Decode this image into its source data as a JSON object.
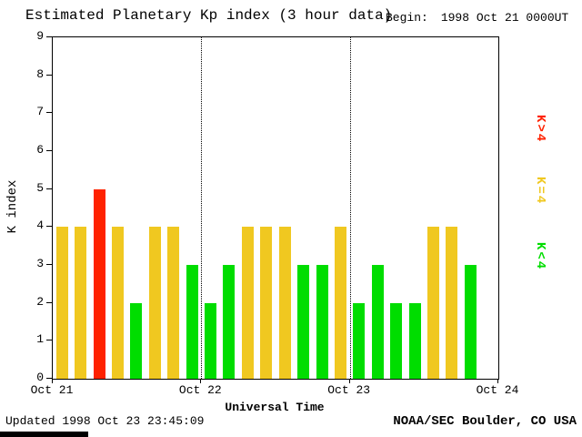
{
  "title": "Estimated Planetary Kp index (3 hour data)",
  "begin_label": "Begin:",
  "begin_value": "1998 Oct 21 0000UT",
  "footer": {
    "updated": "Updated 1998 Oct 23 23:45:09",
    "source": "NOAA/SEC Boulder, CO USA"
  },
  "legend": [
    {
      "label": "K>4",
      "color": "#ff2200"
    },
    {
      "label": "K=4",
      "color": "#f0c820"
    },
    {
      "label": "K<4",
      "color": "#00dd00"
    }
  ],
  "chart_data": {
    "type": "bar",
    "title": "Estimated Planetary Kp index (3 hour data)",
    "xlabel": "Universal Time",
    "ylabel": "K index",
    "ylim": [
      0,
      9
    ],
    "yticks": [
      0,
      1,
      2,
      3,
      4,
      5,
      6,
      7,
      8,
      9
    ],
    "xticklabels": [
      "Oct 21",
      "Oct 22",
      "Oct 23",
      "Oct 24"
    ],
    "hours_per_bar": 3,
    "bars_per_day": 8,
    "days": [
      {
        "date": "Oct 21",
        "values": [
          4,
          4,
          5,
          4,
          2,
          4,
          4,
          3
        ]
      },
      {
        "date": "Oct 22",
        "values": [
          2,
          3,
          4,
          4,
          4,
          3,
          3,
          4
        ]
      },
      {
        "date": "Oct 23",
        "values": [
          2,
          3,
          2,
          2,
          4,
          4,
          3
        ]
      }
    ],
    "color_rules": {
      "above4": "#ff2200",
      "equal4": "#f0c820",
      "below4": "#00dd00"
    },
    "grid": "dotted vertical lines at day boundaries",
    "legend_position": "right, rotated"
  }
}
